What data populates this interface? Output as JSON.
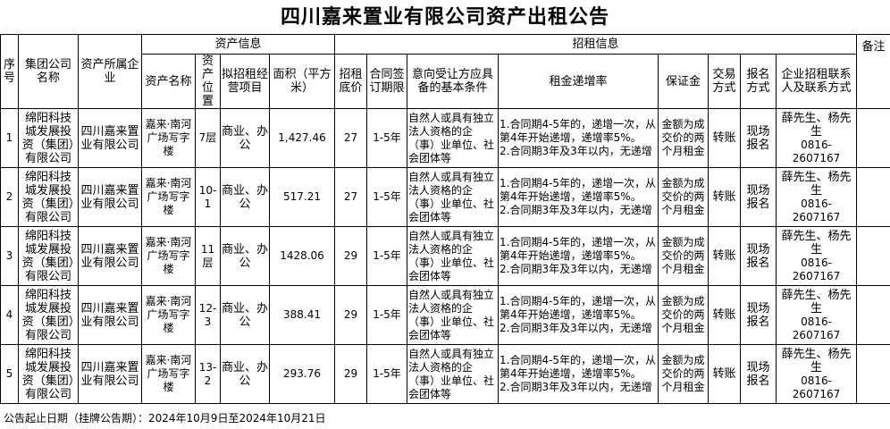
{
  "title": "四川嘉来置业有限公司资产出租公告",
  "headers": {
    "seq": "序号",
    "group": "集团公司名称",
    "owner": "资产所属企业",
    "asset_info": "资产信息",
    "lease_info": "招租信息",
    "remark": "备注",
    "asset_name": "资产名称",
    "location": "资产位置",
    "purpose": "拟招租经营项目",
    "area": "面积（平方米）",
    "price": "招租底价",
    "term": "合同签订期限",
    "conditions": "意向受让方应具备的基本条件",
    "rate": "租金递增率",
    "deposit": "保证金",
    "trade": "交易方式",
    "signup": "报名方式",
    "contact": "企业招租联系人及联系方式"
  },
  "rows": [
    {
      "seq": "1",
      "group": "绵阳科技城发展投资（集团）有限公司",
      "owner": "四川嘉来置业有限公司",
      "asset_name": "嘉来·南河广场写字楼",
      "location": "7层",
      "purpose": "商业、办公",
      "area": "1,427.46",
      "price": "27",
      "term": "1-5年",
      "conditions": "自然人或具有独立法人资格的企（事）业单位、社会团体等",
      "rate1": "1.合同期4-5年的，递增一次，从第4年开始递增，递增率5%。",
      "rate2": "2.合同期3年及3年以内，无递增",
      "deposit": "金额为成交价的两个月租金",
      "trade": "转账",
      "signup": "现场报名",
      "contact_name": "薛先生、杨先生",
      "contact_phone": "0816-2607167",
      "remark": ""
    },
    {
      "seq": "2",
      "group": "绵阳科技城发展投资（集团）有限公司",
      "owner": "四川嘉来置业有限公司",
      "asset_name": "嘉来·南河广场写字楼",
      "location": "10-1",
      "purpose": "商业、办公",
      "area": "517.21",
      "price": "27",
      "term": "1-5年",
      "conditions": "自然人或具有独立法人资格的企（事）业单位、社会团体等",
      "rate1": "1.合同期4-5年的，递增一次，从第4年开始递增，递增率5%。",
      "rate2": "2.合同期3年及3年以内，无递增",
      "deposit": "金额为成交价的两个月租金",
      "trade": "转账",
      "signup": "现场报名",
      "contact_name": "薛先生、杨先生",
      "contact_phone": "0816-2607167",
      "remark": ""
    },
    {
      "seq": "3",
      "group": "绵阳科技城发展投资（集团）有限公司",
      "owner": "四川嘉来置业有限公司",
      "asset_name": "嘉来·南河广场写字楼",
      "location": "11层",
      "purpose": "商业、办公",
      "area": "1428.06",
      "price": "29",
      "term": "1-5年",
      "conditions": "自然人或具有独立法人资格的企（事）业单位、社会团体等",
      "rate1": "1.合同期4-5年的，递增一次，从第4年开始递增，递增率5%。",
      "rate2": "2.合同期3年及3年以内，无递增",
      "deposit": "金额为成交价的两个月租金",
      "trade": "转账",
      "signup": "现场报名",
      "contact_name": "薛先生、杨先生",
      "contact_phone": "0816-2607167",
      "remark": ""
    },
    {
      "seq": "4",
      "group": "绵阳科技城发展投资（集团）有限公司",
      "owner": "四川嘉来置业有限公司",
      "asset_name": "嘉来·南河广场写字楼",
      "location": "12-3",
      "purpose": "商业、办公",
      "area": "388.41",
      "price": "29",
      "term": "1-5年",
      "conditions": "自然人或具有独立法人资格的企（事）业单位、社会团体等",
      "rate1": "1.合同期4-5年的，递增一次，从第4年开始递增，递增率5%。",
      "rate2": "2.合同期3年及3年以内，无递增",
      "deposit": "金额为成交价的两个月租金",
      "trade": "转账",
      "signup": "现场报名",
      "contact_name": "薛先生、杨先生",
      "contact_phone": "0816-2607167",
      "remark": ""
    },
    {
      "seq": "5",
      "group": "绵阳科技城发展投资（集团）有限公司",
      "owner": "四川嘉来置业有限公司",
      "asset_name": "嘉来·南河广场写字楼",
      "location": "13-2",
      "purpose": "商业、办公",
      "area": "293.76",
      "price": "29",
      "term": "1-5年",
      "conditions": "自然人或具有独立法人资格的企（事）业单位、社会团体等",
      "rate1": "1.合同期4-5年的，递增一次，从第4年开始递增，递增率5%。",
      "rate2": "2.合同期3年及3年以内，无递增",
      "deposit": "金额为成交价的两个月租金",
      "trade": "转账",
      "signup": "现场报名",
      "contact_name": "薛先生、杨先生",
      "contact_phone": "0816-2607167",
      "remark": ""
    }
  ],
  "footer": "公告起止日期（挂牌公告期）：2024年10月9日至2024年10月21日"
}
